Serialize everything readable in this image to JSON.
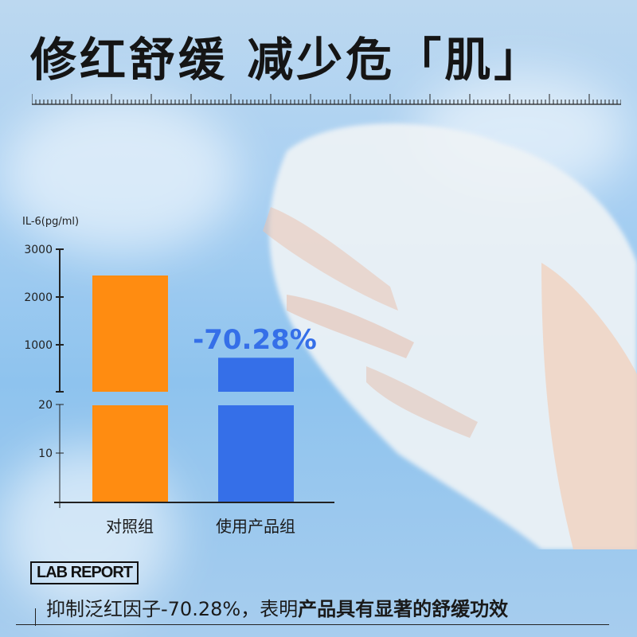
{
  "title": "修红舒缓 减少危「肌」",
  "chart_data": {
    "type": "bar",
    "ylabel": "IL-6(pg/ml)",
    "categories": [
      "对照组",
      "使用产品组"
    ],
    "values": [
      2450,
      728
    ],
    "broken_axis": true,
    "y_ticks_upper": [
      "3000",
      "2000",
      "1000"
    ],
    "y_ticks_lower": [
      "20",
      "10"
    ],
    "ylim_upper": [
      0,
      3000
    ],
    "ylim_lower": [
      0,
      20
    ],
    "colors": [
      "#ff8c11",
      "#356fe8"
    ],
    "annotation": "-70.28%",
    "annotation_color": "#356fe8"
  },
  "lab_report": "LAB REPORT",
  "summary": {
    "normal": "抑制泛红因子-70.28%，表明",
    "bold": "产品具有显著的舒缓功效"
  }
}
